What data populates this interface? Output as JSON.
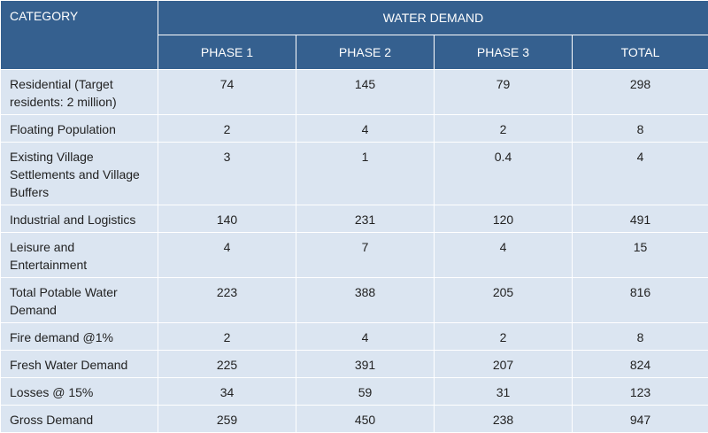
{
  "header": {
    "category_label": "CATEGORY",
    "group_label": "WATER DEMAND",
    "columns": [
      "PHASE 1",
      "PHASE 2",
      "PHASE 3",
      "TOTAL"
    ]
  },
  "rows": [
    {
      "category": "Residential (Target residents: 2 million)",
      "values": [
        "74",
        "145",
        "79",
        "298"
      ]
    },
    {
      "category": "Floating Population",
      "values": [
        "2",
        "4",
        "2",
        "8"
      ]
    },
    {
      "category": "Existing Village Settlements and Village Buffers",
      "values": [
        "3",
        "1",
        "0.4",
        "4"
      ]
    },
    {
      "category": "Industrial and Logistics",
      "values": [
        "140",
        "231",
        "120",
        "491"
      ]
    },
    {
      "category": "Leisure and Entertainment",
      "values": [
        "4",
        "7",
        "4",
        "15"
      ]
    },
    {
      "category": "Total Potable Water Demand",
      "values": [
        "223",
        "388",
        "205",
        "816"
      ]
    },
    {
      "category": "Fire demand @1%",
      "values": [
        "2",
        "4",
        "2",
        "8"
      ]
    },
    {
      "category": "Fresh Water Demand",
      "values": [
        "225",
        "391",
        "207",
        "824"
      ]
    },
    {
      "category": "Losses @ 15%",
      "values": [
        "34",
        "59",
        "31",
        "123"
      ]
    },
    {
      "category": "Gross Demand",
      "values": [
        "259",
        "450",
        "238",
        "947"
      ]
    }
  ],
  "colors": {
    "header_bg": "#35608f",
    "header_text": "#ffffff",
    "row_bg": "#dbe5f1",
    "body_text": "#222222"
  }
}
